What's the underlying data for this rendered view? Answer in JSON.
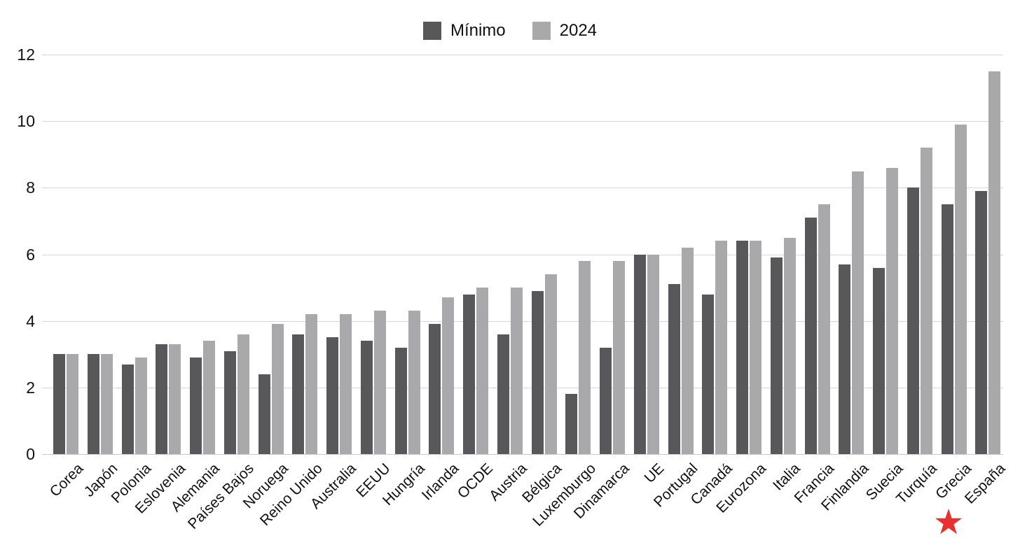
{
  "legend": {
    "items": [
      {
        "label": "Mínimo",
        "color": "#58585a"
      },
      {
        "label": "2024",
        "color": "#a9a9ab"
      }
    ]
  },
  "chart_data": {
    "type": "bar",
    "title": "",
    "xlabel": "",
    "ylabel": "",
    "ylim": [
      0,
      12
    ],
    "yticks": [
      0,
      2,
      4,
      6,
      8,
      10,
      12
    ],
    "grid": "horizontal",
    "grid_color": "#d6d6d6",
    "legend_position": "top-center",
    "background_color": "#ffffff",
    "categories": [
      "Corea",
      "Japón",
      "Polonia",
      "Eslovenia",
      "Alemania",
      "Países Bajos",
      "Noruega",
      "Reino Unido",
      "Australia",
      "EEUU",
      "Hungría",
      "Irlanda",
      "OCDE",
      "Austria",
      "Bélgica",
      "Luxemburgo",
      "Dinamarca",
      "UE",
      "Portugal",
      "Canadá",
      "Eurozona",
      "Italia",
      "Francia",
      "Finlandia",
      "Suecia",
      "Turquía",
      "Grecia",
      "España"
    ],
    "series": [
      {
        "name": "Mínimo",
        "color": "#58585a",
        "values": [
          3.0,
          3.0,
          2.7,
          3.3,
          2.9,
          3.1,
          2.4,
          3.6,
          3.5,
          3.4,
          3.2,
          3.9,
          4.8,
          3.6,
          4.9,
          1.8,
          3.2,
          6.0,
          5.1,
          4.8,
          6.4,
          5.9,
          7.1,
          5.7,
          5.6,
          8.0,
          7.5,
          7.9
        ]
      },
      {
        "name": "2024",
        "color": "#a9a9ab",
        "values": [
          3.0,
          3.0,
          2.9,
          3.3,
          3.4,
          3.6,
          3.9,
          4.2,
          4.2,
          4.3,
          4.3,
          4.7,
          5.0,
          5.0,
          5.4,
          5.8,
          5.8,
          6.0,
          6.2,
          6.4,
          6.4,
          6.5,
          7.5,
          8.5,
          8.6,
          9.2,
          9.9,
          11.5
        ]
      }
    ],
    "annotations": [
      {
        "type": "marker",
        "shape": "star",
        "color": "#e93030",
        "category": "España",
        "position": "below-x-axis-label"
      }
    ]
  }
}
